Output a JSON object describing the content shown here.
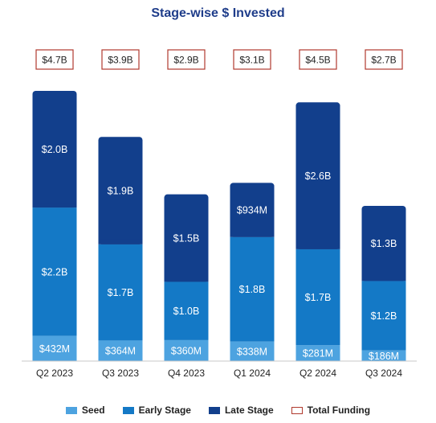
{
  "chart_data": {
    "type": "bar",
    "stacked": true,
    "title": "Stage-wise $ Invested",
    "categories": [
      "Q2 2023",
      "Q3 2023",
      "Q4 2023",
      "Q1 2024",
      "Q2 2024",
      "Q3 2024"
    ],
    "series": [
      {
        "name": "Seed",
        "color": "#4da3e0",
        "values": [
          0.432,
          0.364,
          0.36,
          0.338,
          0.281,
          0.186
        ],
        "labels": [
          "$432M",
          "$364M",
          "$360M",
          "$338M",
          "$281M",
          "$186M"
        ]
      },
      {
        "name": "Early Stage",
        "color": "#1479c6",
        "values": [
          2.2,
          1.7,
          1.0,
          1.8,
          1.7,
          1.2
        ],
        "labels": [
          "$2.2B",
          "$1.7B",
          "$1.0B",
          "$1.8B",
          "$1.7B",
          "$1.2B"
        ]
      },
      {
        "name": "Late Stage",
        "color": "#123f8c",
        "values": [
          2.0,
          1.9,
          1.5,
          0.934,
          2.6,
          1.3
        ],
        "labels": [
          "$2.0B",
          "$1.9B",
          "$1.5B",
          "$934M",
          "$2.6B",
          "$1.3B"
        ]
      }
    ],
    "totals": {
      "name": "Total Funding",
      "color": "#b03a2e",
      "values": [
        4.7,
        3.9,
        2.9,
        3.1,
        4.5,
        2.7
      ],
      "labels": [
        "$4.7B",
        "$3.9B",
        "$2.9B",
        "$3.1B",
        "$4.5B",
        "$2.7B"
      ]
    },
    "legend": [
      "Seed",
      "Early Stage",
      "Late Stage",
      "Total Funding"
    ],
    "legend_position": "bottom",
    "grid": false
  }
}
